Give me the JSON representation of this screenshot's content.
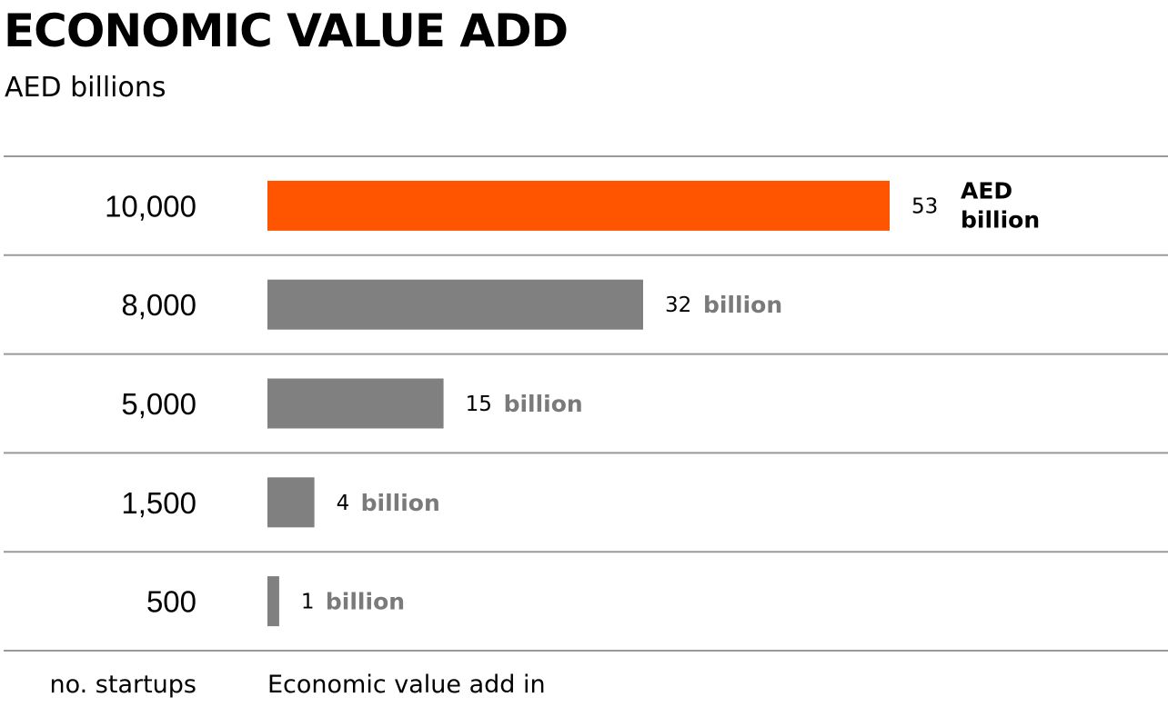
{
  "title": "ECONOMIC VALUE ADD",
  "subtitle": "AED billions",
  "chart_data": {
    "type": "bar",
    "orientation": "horizontal",
    "title": "ECONOMIC VALUE ADD",
    "subtitle": "AED billions",
    "categories": [
      "10,000",
      "8,000",
      "5,000",
      "1,500",
      "500"
    ],
    "values": [
      53,
      32,
      15,
      4,
      1
    ],
    "value_labels": [
      {
        "number": "53",
        "unit": "AED billion"
      },
      {
        "number": "32",
        "unit": "billion"
      },
      {
        "number": "15",
        "unit": "billion"
      },
      {
        "number": "4",
        "unit": "billion"
      },
      {
        "number": "1",
        "unit": "billion"
      }
    ],
    "highlight_index": 0,
    "colors": {
      "highlight": "#ff5500",
      "default": "#808080",
      "rule": "#999999"
    },
    "category_axis_label": "no. startups",
    "value_axis_label": "Economic value add in",
    "xlim": [
      0,
      53
    ],
    "grid": false,
    "legend": "none"
  }
}
